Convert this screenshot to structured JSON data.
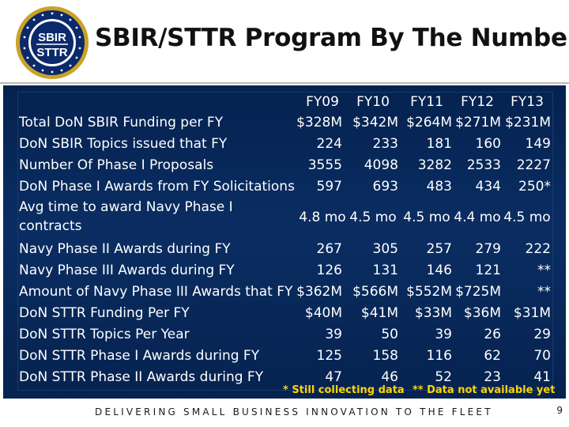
{
  "header": {
    "title": "SBIR/STTR Program By The Numbers",
    "logo": {
      "icon": "department-of-the-navy-seal",
      "line1": "SBIR",
      "line2": "STTR"
    }
  },
  "table": {
    "columns": [
      "FY09",
      "FY10",
      "FY11",
      "FY12",
      "FY13"
    ],
    "rows": [
      {
        "label": "Total DoN SBIR Funding per FY",
        "values": [
          "$328M",
          "$342M",
          "$264M",
          "$271M",
          "$231M"
        ]
      },
      {
        "label": "DoN SBIR Topics issued that FY",
        "values": [
          "224",
          "233",
          "181",
          "160",
          "149"
        ]
      },
      {
        "label": "Number Of Phase I Proposals",
        "values": [
          "3555",
          "4098",
          "3282",
          "2533",
          "2227"
        ]
      },
      {
        "label": "DoN Phase I Awards from FY Solicitations",
        "values": [
          "597",
          "693",
          "483",
          "434",
          "250*"
        ]
      },
      {
        "label": "Avg time to award Navy Phase I contracts",
        "values": [
          "4.8 mo",
          "4.5 mo",
          "4.5 mo",
          "4.4 mo",
          "4.5 mo"
        ]
      },
      {
        "label": "Navy Phase II Awards during FY",
        "values": [
          "267",
          "305",
          "257",
          "279",
          "222"
        ]
      },
      {
        "label": "Navy Phase III Awards during FY",
        "values": [
          "126",
          "131",
          "146",
          "121",
          "**"
        ]
      },
      {
        "label": "Amount of Navy Phase III Awards that FY",
        "values": [
          "$362M",
          "$566M",
          "$552M",
          "$725M",
          "**"
        ]
      },
      {
        "label": "DoN STTR Funding Per FY",
        "values": [
          "$40M",
          "$41M",
          "$33M",
          "$36M",
          "$31M"
        ]
      },
      {
        "label": "DoN STTR Topics Per Year",
        "values": [
          "39",
          "50",
          "39",
          "26",
          "29"
        ]
      },
      {
        "label": "DoN STTR Phase I Awards during FY",
        "values": [
          "125",
          "158",
          "116",
          "62",
          "70"
        ]
      },
      {
        "label": "DoN STTR Phase II Awards during FY",
        "values": [
          "47",
          "46",
          "52",
          "23",
          "41"
        ]
      }
    ]
  },
  "footnotes": {
    "note1": "* Still collecting data",
    "note2": "** Data not available yet"
  },
  "footer": {
    "tagline": "DELIVERING SMALL BUSINESS INNOVATION TO THE FLEET",
    "page_number": "9"
  },
  "colors": {
    "panel_background": "#0a2d62",
    "text": "#ffffff",
    "footnote": "#ffd400"
  }
}
